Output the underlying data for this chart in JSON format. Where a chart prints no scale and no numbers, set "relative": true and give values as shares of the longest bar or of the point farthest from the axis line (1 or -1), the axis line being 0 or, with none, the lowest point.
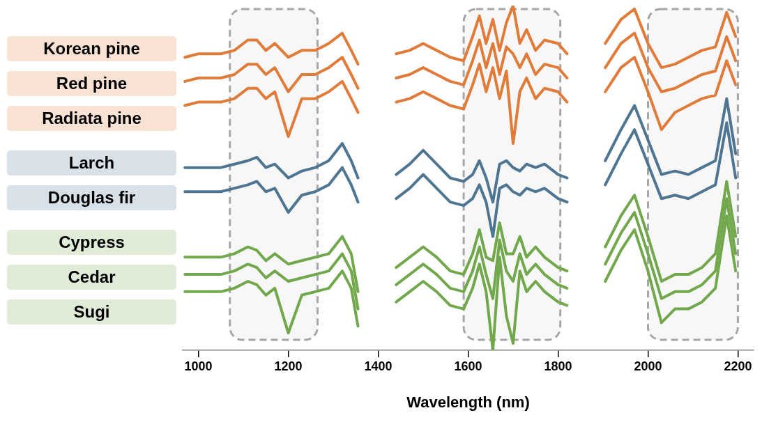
{
  "chart_data": {
    "type": "line",
    "relative": true,
    "xlabel": "Wavelength (nm)",
    "x": [
      970,
      1000,
      1050,
      1080,
      1110,
      1130,
      1150,
      1170,
      1200,
      1230,
      1260,
      1290,
      1320,
      1340,
      1355,
      1400,
      1440,
      1470,
      1500,
      1530,
      1560,
      1590,
      1610,
      1625,
      1640,
      1655,
      1670,
      1685,
      1700,
      1715,
      1730,
      1750,
      1770,
      1800,
      1820,
      1860,
      1905,
      1940,
      1970,
      2000,
      2030,
      2060,
      2090,
      2120,
      2150,
      2175,
      2195
    ],
    "xlim": [
      965,
      2235
    ],
    "xticks": [
      1000,
      1200,
      1400,
      1600,
      1800,
      2000,
      2200
    ],
    "grid": false,
    "legend": "left",
    "marker": "none",
    "line_style": "solid",
    "bands": [
      {
        "axis": "x",
        "from": 1070,
        "to": 1265,
        "color": "#f7f7f7"
      },
      {
        "axis": "x",
        "from": 1590,
        "to": 1805,
        "color": "#f7f7f7"
      },
      {
        "axis": "x",
        "from": 2000,
        "to": 2200,
        "color": "#f7f7f7"
      }
    ],
    "series": [
      {
        "name": "Korean pine",
        "color": "#e07b39",
        "values": [
          0.85,
          0.86,
          0.86,
          0.87,
          0.9,
          0.9,
          0.87,
          0.89,
          0.85,
          0.87,
          0.87,
          0.89,
          0.92,
          0.87,
          0.83,
          null,
          0.86,
          0.87,
          0.89,
          0.87,
          0.85,
          0.84,
          0.91,
          0.97,
          0.89,
          0.96,
          0.87,
          0.95,
          1.0,
          0.89,
          0.93,
          0.87,
          0.9,
          0.89,
          0.86,
          null,
          0.89,
          0.96,
          0.99,
          0.89,
          0.82,
          0.83,
          0.85,
          0.87,
          0.88,
          0.98,
          0.91
        ]
      },
      {
        "name": "Red pine",
        "color": "#e07b39",
        "values": [
          0.78,
          0.79,
          0.79,
          0.8,
          0.83,
          0.83,
          0.8,
          0.82,
          0.75,
          0.8,
          0.8,
          0.82,
          0.85,
          0.8,
          0.76,
          null,
          0.79,
          0.8,
          0.82,
          0.8,
          0.78,
          0.77,
          0.84,
          0.9,
          0.82,
          0.89,
          0.8,
          0.88,
          0.86,
          0.82,
          0.86,
          0.8,
          0.83,
          0.82,
          0.79,
          null,
          0.82,
          0.89,
          0.92,
          0.82,
          0.75,
          0.76,
          0.78,
          0.8,
          0.81,
          0.91,
          0.84
        ]
      },
      {
        "name": "Radiata pine",
        "color": "#e07b39",
        "values": [
          0.71,
          0.72,
          0.72,
          0.73,
          0.76,
          0.76,
          0.73,
          0.75,
          0.62,
          0.73,
          0.73,
          0.75,
          0.78,
          0.73,
          0.69,
          null,
          0.72,
          0.73,
          0.75,
          0.73,
          0.71,
          0.7,
          0.77,
          0.83,
          0.75,
          0.82,
          0.73,
          0.81,
          0.6,
          0.75,
          0.79,
          0.73,
          0.76,
          0.75,
          0.72,
          null,
          0.75,
          0.82,
          0.85,
          0.75,
          0.64,
          0.69,
          0.71,
          0.73,
          0.74,
          0.84,
          0.77
        ]
      },
      {
        "name": "Larch",
        "color": "#4e7591",
        "values": [
          0.53,
          0.53,
          0.53,
          0.54,
          0.55,
          0.56,
          0.53,
          0.54,
          0.5,
          0.52,
          0.53,
          0.55,
          0.6,
          0.55,
          0.5,
          null,
          0.51,
          0.54,
          0.58,
          0.54,
          0.5,
          0.49,
          0.51,
          0.55,
          0.5,
          0.43,
          0.54,
          0.55,
          0.53,
          0.52,
          0.54,
          0.53,
          0.54,
          0.51,
          0.5,
          null,
          0.55,
          0.64,
          0.71,
          0.61,
          0.51,
          0.52,
          0.51,
          0.53,
          0.55,
          0.73,
          0.57
        ]
      },
      {
        "name": "Douglas fir",
        "color": "#4e7591",
        "values": [
          0.46,
          0.46,
          0.46,
          0.47,
          0.48,
          0.49,
          0.46,
          0.47,
          0.4,
          0.45,
          0.46,
          0.48,
          0.53,
          0.48,
          0.43,
          null,
          0.44,
          0.47,
          0.51,
          0.47,
          0.43,
          0.42,
          0.44,
          0.48,
          0.43,
          0.33,
          0.47,
          0.48,
          0.46,
          0.45,
          0.47,
          0.46,
          0.47,
          0.44,
          0.43,
          null,
          0.48,
          0.57,
          0.64,
          0.54,
          0.44,
          0.45,
          0.44,
          0.46,
          0.48,
          0.66,
          0.5
        ]
      },
      {
        "name": "Cypress",
        "color": "#71a84b",
        "values": [
          0.27,
          0.27,
          0.27,
          0.28,
          0.3,
          0.29,
          0.26,
          0.28,
          0.25,
          0.26,
          0.27,
          0.28,
          0.33,
          0.28,
          0.17,
          null,
          0.24,
          0.27,
          0.3,
          0.27,
          0.23,
          0.22,
          0.28,
          0.35,
          0.27,
          0.26,
          0.37,
          0.28,
          0.28,
          0.33,
          0.27,
          0.3,
          0.27,
          0.24,
          0.23,
          null,
          0.3,
          0.39,
          0.45,
          0.33,
          0.2,
          0.22,
          0.22,
          0.24,
          0.28,
          0.49,
          0.33
        ]
      },
      {
        "name": "Cedar",
        "color": "#71a84b",
        "values": [
          0.22,
          0.22,
          0.22,
          0.23,
          0.25,
          0.24,
          0.21,
          0.23,
          0.2,
          0.21,
          0.22,
          0.23,
          0.28,
          0.23,
          0.12,
          null,
          0.19,
          0.22,
          0.25,
          0.22,
          0.18,
          0.17,
          0.23,
          0.3,
          0.22,
          0.15,
          0.32,
          0.23,
          0.2,
          0.28,
          0.22,
          0.25,
          0.22,
          0.19,
          0.18,
          null,
          0.25,
          0.34,
          0.4,
          0.28,
          0.15,
          0.17,
          0.17,
          0.19,
          0.23,
          0.44,
          0.28
        ]
      },
      {
        "name": "Sugi",
        "color": "#71a84b",
        "values": [
          0.17,
          0.17,
          0.17,
          0.18,
          0.2,
          0.19,
          0.16,
          0.18,
          0.05,
          0.16,
          0.17,
          0.18,
          0.23,
          0.18,
          0.07,
          null,
          0.14,
          0.17,
          0.2,
          0.17,
          0.13,
          0.12,
          0.18,
          0.25,
          0.17,
          0,
          0.27,
          0.1,
          0.02,
          0.23,
          0.17,
          0.2,
          0.17,
          0.14,
          0.13,
          null,
          0.2,
          0.29,
          0.35,
          0.23,
          0.08,
          0.12,
          0.12,
          0.14,
          0.18,
          0.39,
          0.23
        ]
      }
    ]
  }
}
